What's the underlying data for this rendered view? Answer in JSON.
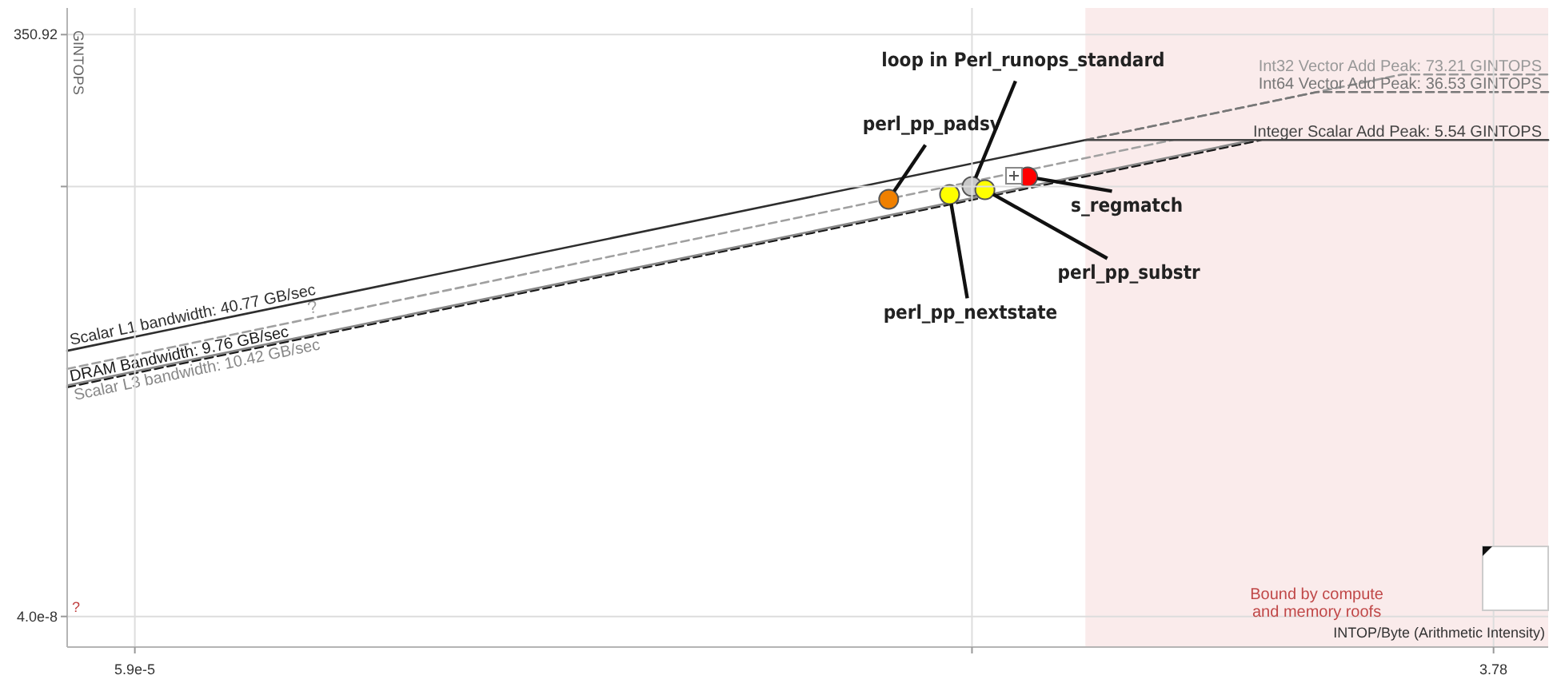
{
  "chart_data": {
    "type": "line",
    "xlabel": "INTOP/Byte (Arithmetic Intensity)",
    "ylabel": "GINTOPS",
    "log": "xy",
    "grid": true,
    "xlim": [
      3.4e-05,
      5.9
    ],
    "ylim": [
      1.2e-08,
      1000
    ],
    "xticks": [
      {
        "value": 5.9e-05,
        "label": "5.9e-5"
      },
      {
        "value": 0.054,
        "label": null
      },
      3.78
    ],
    "yticks": [
      {
        "value": 4e-08,
        "label": "4.0e-8"
      },
      {
        "value": 0.89,
        "label": null
      },
      350.92
    ],
    "bands": [
      {
        "axis": "x",
        "from": 0.136,
        "to": 5.9,
        "label": "Bound by compute and memory roofs",
        "color": "#f6dede"
      }
    ],
    "series": [
      {
        "name": "?",
        "color": "#a0a0a0",
        "line_style": "dashed",
        "x": [
          3.4e-05,
          0.277
        ],
        "values": [
          0.00068,
          5.54
        ]
      },
      {
        "name": "Scalar L1 bandwidth: 40.77 GB/sec",
        "color": "#2e2e2e",
        "line_style": "solid",
        "x": [
          3.4e-05,
          0.136
        ],
        "values": [
          0.001386,
          5.54
        ]
      },
      {
        "name": "DRAM Bandwidth: 9.76 GB/sec",
        "color": "#1a1a1a",
        "line_style": "dashed",
        "x": [
          3.4e-05,
          0.568
        ],
        "values": [
          0.000332,
          5.54
        ]
      },
      {
        "name": "Scalar L3 bandwidth: 10.42 GB/sec",
        "color": "#888888",
        "line_style": "solid",
        "x": [
          3.4e-05,
          0.532
        ],
        "values": [
          0.000354,
          5.54
        ]
      },
      {
        "name": "Int32 Vector Add Peak: 73.21 GINTOPS",
        "color": "#999999",
        "line_style": "dashed",
        "x": [
          0.136,
          1.796,
          5.9
        ],
        "values": [
          5.54,
          73.21,
          73.21
        ]
      },
      {
        "name": "Int64 Vector Add Peak: 36.53 GINTOPS",
        "color": "#777777",
        "line_style": "dashed",
        "x": [
          0.136,
          0.896,
          5.9
        ],
        "values": [
          5.54,
          36.53,
          36.53
        ]
      },
      {
        "name": "Integer Scalar Add Peak: 5.54 GINTOPS",
        "color": "#444444",
        "line_style": "solid",
        "x": [
          0.136,
          5.9
        ],
        "values": [
          5.54,
          5.54
        ]
      },
      {
        "type": "scatter",
        "marker": "circle",
        "x": [
          0.0274,
          0.045,
          0.054,
          0.06,
          0.085
        ],
        "values": [
          0.538,
          0.65,
          0.89,
          0.785,
          1.3
        ],
        "colors": [
          "#f08000",
          "#ffff00",
          "#c8c8c8",
          "#ffff00",
          "#ff0000"
        ]
      }
    ],
    "annotations": [
      {
        "text": "perl_pp_padsv",
        "x": 0.0274,
        "y": 0.538
      },
      {
        "text": "perl_pp_nextstate",
        "x": 0.045,
        "y": 0.65
      },
      {
        "text": "loop in Perl_runops_standard",
        "x": 0.054,
        "y": 0.89
      },
      {
        "text": "perl_pp_substr",
        "x": 0.06,
        "y": 0.785
      },
      {
        "text": "s_regmatch",
        "x": 0.085,
        "y": 1.3
      },
      "?"
    ]
  }
}
